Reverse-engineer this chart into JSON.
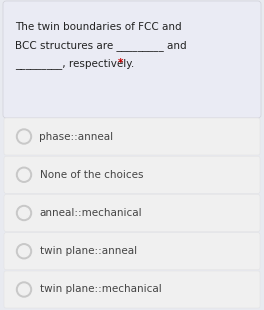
{
  "bg_color": "#e8eaf0",
  "question_bg": "#eaebf4",
  "choice_bg": "#f0f0f0",
  "question_text_line1": "The twin boundaries of FCC and",
  "question_text_line2": "BCC structures are _________ and",
  "question_text_line3": "_________, respectively. ",
  "required_star": "*",
  "star_color": "#cc0000",
  "choices": [
    "phase::anneal",
    "None of the choices",
    "anneal::mechanical",
    "twin plane::anneal",
    "twin plane::mechanical"
  ],
  "text_color": "#222222",
  "choice_text_color": "#444444",
  "radio_fill": "#c8c8c8",
  "radio_inner": "#f0f0f0",
  "font_size_question": 7.5,
  "font_size_choice": 7.5,
  "outer_border": "#d0d0d8",
  "choice_border": "#e0e0e0"
}
